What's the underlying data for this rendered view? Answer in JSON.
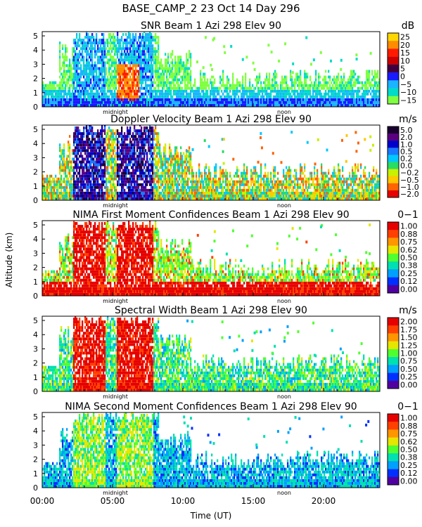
{
  "chart_data": {
    "type": "heatmap",
    "title": "BASE_CAMP_2  23 Oct 14 Day 296",
    "xlabel": "Time (UT)",
    "ylabel": "Altitude (km)",
    "x_ticks": [
      "00:00",
      "05:00",
      "10:00",
      "15:00",
      "20:00"
    ],
    "x_tick_hours": [
      0,
      5,
      10,
      15,
      20
    ],
    "xlim": [
      0,
      24
    ],
    "ylim": [
      0,
      5.3
    ],
    "y_ticks": [
      "0",
      "1",
      "2",
      "3",
      "4",
      "5"
    ],
    "markers": [
      {
        "label": "midnight",
        "hour": 5.2
      },
      {
        "label": "noon",
        "hour": 17.2
      }
    ],
    "panels": [
      {
        "title": "SNR Beam 1 Azi 298 Elev 90",
        "unit": "dB",
        "scale": [
          "25",
          "20",
          "15",
          "10",
          "5",
          "0",
          "−5",
          "−10",
          "−15"
        ],
        "colors": [
          "#ffd700",
          "#ff8c00",
          "#ff1a00",
          "#cc0000",
          "#400040",
          "#1a1aff",
          "#1ab4ff",
          "#00dcc8",
          "#80ff40"
        ]
      },
      {
        "title": "Doppler Velocity Beam 1 Azi 298 Elev 90",
        "unit": "m/s",
        "scale": [
          "5.0",
          "2.0",
          "1.0",
          "0.5",
          "0.2",
          "0.0",
          "−0.2",
          "−0.5",
          "−1.0",
          "−2.0"
        ],
        "colors": [
          "#1a0030",
          "#5a0080",
          "#0000cc",
          "#1a78ff",
          "#00c8ff",
          "#28dc64",
          "#c8f000",
          "#ffc800",
          "#ff6400",
          "#e60000"
        ]
      },
      {
        "title": "NIMA First Moment Confidences Beam 1 Azi 298 Elev 90",
        "unit": "0−1",
        "scale": [
          "1.00",
          "0.88",
          "0.75",
          "0.62",
          "0.50",
          "0.38",
          "0.25",
          "0.12",
          "0.00"
        ],
        "colors": [
          "#e60000",
          "#ff4000",
          "#ff9600",
          "#e6e600",
          "#50ff30",
          "#00e0b0",
          "#00a0ff",
          "#0030ff",
          "#5000a0"
        ]
      },
      {
        "title": "Spectral Width Beam 1 Azi 298 Elev 90",
        "unit": "m/s",
        "scale": [
          "2.00",
          "1.75",
          "1.50",
          "1.25",
          "1.00",
          "0.75",
          "0.50",
          "0.25",
          "0.00"
        ],
        "colors": [
          "#e60000",
          "#ff4000",
          "#ff9600",
          "#e6e600",
          "#50ff30",
          "#00e0b0",
          "#00a0ff",
          "#0030ff",
          "#5000a0"
        ]
      },
      {
        "title": "NIMA Second Moment Confidences Beam 1 Azi 298 Elev 90",
        "unit": "0−1",
        "scale": [
          "1.00",
          "0.88",
          "0.75",
          "0.62",
          "0.50",
          "0.38",
          "0.25",
          "0.12",
          "0.00"
        ],
        "colors": [
          "#e60000",
          "#ff4000",
          "#ff9600",
          "#e6e600",
          "#50ff30",
          "#00e0b0",
          "#00a0ff",
          "#0030ff",
          "#5000a0"
        ]
      }
    ]
  }
}
